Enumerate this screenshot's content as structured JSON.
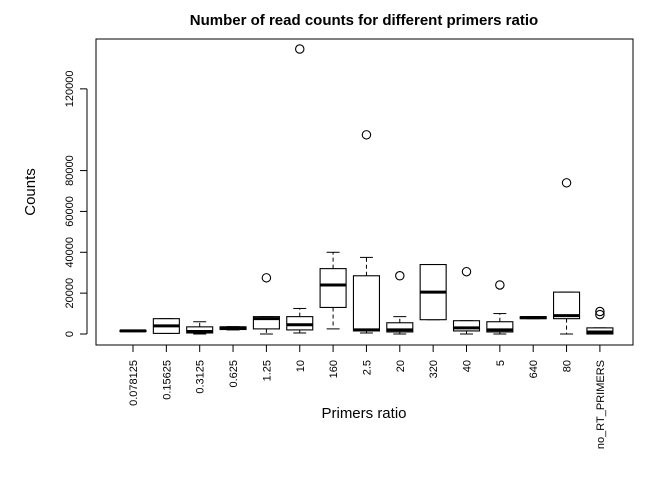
{
  "chart_data": {
    "type": "boxplot",
    "title": "Number of read counts for different primers ratio",
    "xlabel": "Primers ratio",
    "ylabel": "Counts",
    "ylim": [
      -3000,
      138000
    ],
    "yticks": [
      0,
      20000,
      40000,
      60000,
      80000,
      120000
    ],
    "ytick_labels": [
      "0",
      "20000",
      "40000",
      "60000",
      "80000",
      "120000"
    ],
    "categories": [
      "0.078125",
      "0.15625",
      "0.3125",
      "0.625",
      "1.25",
      "10",
      "160",
      "2.5",
      "20",
      "320",
      "40",
      "5",
      "640",
      "80",
      "no_RT_PRIMERS"
    ],
    "boxes": [
      {
        "category": "0.078125",
        "min": 1200,
        "q1": 1200,
        "median": 1500,
        "q3": 1800,
        "max": 1800,
        "outliers": []
      },
      {
        "category": "0.15625",
        "min": 300,
        "q1": 300,
        "median": 4000,
        "q3": 7500,
        "max": 7500,
        "outliers": []
      },
      {
        "category": "0.3125",
        "min": 0,
        "q1": 500,
        "median": 1200,
        "q3": 3500,
        "max": 6000,
        "outliers": []
      },
      {
        "category": "0.625",
        "min": 2000,
        "q1": 2200,
        "median": 3000,
        "q3": 3500,
        "max": 3600,
        "outliers": []
      },
      {
        "category": "1.25",
        "min": 0,
        "q1": 2500,
        "median": 7500,
        "q3": 8500,
        "max": 8500,
        "outliers": [
          27500
        ]
      },
      {
        "category": "10",
        "min": 500,
        "q1": 2000,
        "median": 4500,
        "q3": 8500,
        "max": 12500,
        "outliers": [
          139500
        ]
      },
      {
        "category": "160",
        "min": 2500,
        "q1": 13000,
        "median": 24000,
        "q3": 32000,
        "max": 40000,
        "outliers": []
      },
      {
        "category": "2.5",
        "min": 500,
        "q1": 1500,
        "median": 2000,
        "q3": 28500,
        "max": 37500,
        "outliers": [
          97500
        ]
      },
      {
        "category": "20",
        "min": 0,
        "q1": 1000,
        "median": 2000,
        "q3": 5500,
        "max": 8500,
        "outliers": [
          28500
        ]
      },
      {
        "category": "320",
        "min": 7000,
        "q1": 7000,
        "median": 20500,
        "q3": 34000,
        "max": 34000,
        "outliers": []
      },
      {
        "category": "40",
        "min": 0,
        "q1": 1500,
        "median": 3000,
        "q3": 6500,
        "max": 6500,
        "outliers": [
          30500
        ]
      },
      {
        "category": "5",
        "min": 0,
        "q1": 1000,
        "median": 2000,
        "q3": 6000,
        "max": 10000,
        "outliers": [
          24000
        ]
      },
      {
        "category": "640",
        "min": 7500,
        "q1": 7500,
        "median": 8000,
        "q3": 8500,
        "max": 8500,
        "outliers": []
      },
      {
        "category": "80",
        "min": 0,
        "q1": 7500,
        "median": 9000,
        "q3": 20500,
        "max": 20500,
        "outliers": [
          74000
        ]
      },
      {
        "category": "no_RT_PRIMERS",
        "min": 0,
        "q1": 0,
        "median": 1000,
        "q3": 3000,
        "max": 3000,
        "outliers": [
          11000,
          9500
        ]
      }
    ],
    "grid": false,
    "legend": "none"
  }
}
